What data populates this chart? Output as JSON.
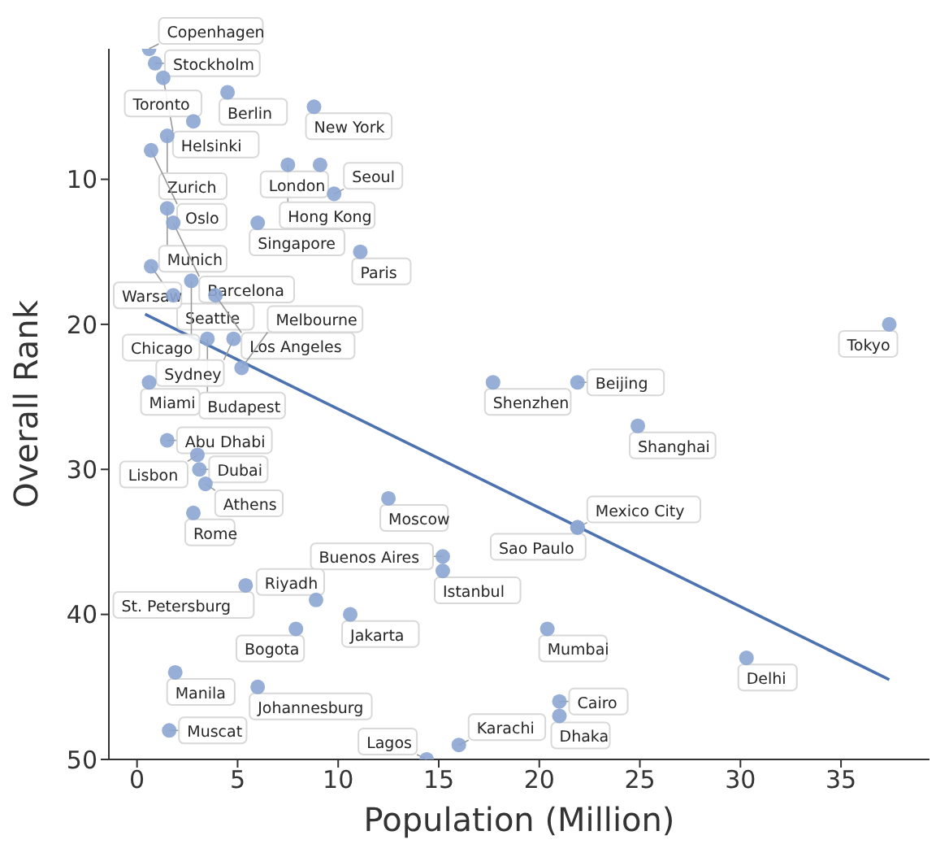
{
  "chart_data": {
    "type": "scatter",
    "xlabel": "Population (Million)",
    "ylabel": "Overall Rank",
    "xlim": [
      -1.4,
      39.4
    ],
    "ylim": [
      50,
      1
    ],
    "xticks": [
      0,
      5,
      10,
      15,
      20,
      25,
      30,
      35
    ],
    "yticks": [
      10,
      20,
      30,
      40,
      50
    ],
    "grid": false,
    "series": [
      {
        "marker": "circle",
        "color": "#8ca5d2",
        "x": [
          0.6,
          0.9,
          1.3,
          4.5,
          8.8,
          2.8,
          1.5,
          0.7,
          7.5,
          9.1,
          9.8,
          1.5,
          1.8,
          6.0,
          11.1,
          0.7,
          2.7,
          1.8,
          3.9,
          37.4,
          3.5,
          4.8,
          5.2,
          0.6,
          17.7,
          21.9,
          24.9,
          1.5,
          3.0,
          3.1,
          3.4,
          12.5,
          2.8,
          21.9,
          21.9,
          15.2,
          15.2,
          5.4,
          8.9,
          10.6,
          7.9,
          20.4,
          30.3,
          1.9,
          6.0,
          21.0,
          21.0,
          1.6,
          16.0,
          14.4
        ],
        "values": [
          1,
          2,
          3,
          4,
          5,
          6,
          7,
          8,
          9,
          9,
          11,
          12,
          13,
          13,
          15,
          16,
          17,
          18,
          18,
          20,
          21,
          21,
          23,
          24,
          24,
          24,
          27,
          28,
          29,
          30,
          31,
          32,
          33,
          34,
          34,
          36,
          37,
          38,
          39,
          40,
          41,
          41,
          43,
          44,
          45,
          46,
          47,
          48,
          49,
          50
        ]
      },
      {
        "type": "line",
        "marker": "none",
        "color": "#4c72b0",
        "x": [
          0.4,
          37.4
        ],
        "values": [
          19.3,
          44.5
        ]
      }
    ],
    "annotations": [
      {
        "text": "Copenhagen",
        "x": 0.6,
        "y": 1
      },
      {
        "text": "Stockholm",
        "x": 0.9,
        "y": 2
      },
      {
        "text": "Helsinki",
        "x": 1.3,
        "y": 3
      },
      {
        "text": "Berlin",
        "x": 4.5,
        "y": 4
      },
      {
        "text": "New York",
        "x": 8.8,
        "y": 5
      },
      {
        "text": "Toronto",
        "x": 2.8,
        "y": 6
      },
      {
        "text": "Zurich",
        "x": 1.5,
        "y": 7
      },
      {
        "text": "Oslo",
        "x": 0.7,
        "y": 8
      },
      {
        "text": "Hong Kong",
        "x": 7.5,
        "y": 9
      },
      {
        "text": "London",
        "x": 9.1,
        "y": 9
      },
      {
        "text": "Seoul",
        "x": 9.8,
        "y": 11
      },
      {
        "text": "Munich",
        "x": 1.5,
        "y": 12
      },
      {
        "text": "Barcelona",
        "x": 1.8,
        "y": 13
      },
      {
        "text": "Singapore",
        "x": 6.0,
        "y": 13
      },
      {
        "text": "Paris",
        "x": 11.1,
        "y": 15
      },
      {
        "text": "Seattle",
        "x": 0.7,
        "y": 16
      },
      {
        "text": "Chicago",
        "x": 2.7,
        "y": 17
      },
      {
        "text": "Warsaw",
        "x": 1.8,
        "y": 18
      },
      {
        "text": "Los Angeles",
        "x": 3.9,
        "y": 18
      },
      {
        "text": "Tokyo",
        "x": 37.4,
        "y": 20
      },
      {
        "text": "Budapest",
        "x": 3.5,
        "y": 21
      },
      {
        "text": "Sydney",
        "x": 4.8,
        "y": 21
      },
      {
        "text": "Melbourne",
        "x": 5.2,
        "y": 23
      },
      {
        "text": "Miami",
        "x": 0.6,
        "y": 24
      },
      {
        "text": "Shenzhen",
        "x": 17.7,
        "y": 24
      },
      {
        "text": "Beijing",
        "x": 21.9,
        "y": 24
      },
      {
        "text": "Shanghai",
        "x": 24.9,
        "y": 27
      },
      {
        "text": "Abu Dhabi",
        "x": 1.5,
        "y": 28
      },
      {
        "text": "Lisbon",
        "x": 3.0,
        "y": 29
      },
      {
        "text": "Dubai",
        "x": 3.1,
        "y": 30
      },
      {
        "text": "Athens",
        "x": 3.4,
        "y": 31
      },
      {
        "text": "Moscow",
        "x": 12.5,
        "y": 32
      },
      {
        "text": "Rome",
        "x": 2.8,
        "y": 33
      },
      {
        "text": "Sao Paulo",
        "x": 21.9,
        "y": 34
      },
      {
        "text": "Mexico City",
        "x": 21.9,
        "y": 34
      },
      {
        "text": "Buenos Aires",
        "x": 15.2,
        "y": 36
      },
      {
        "text": "Istanbul",
        "x": 15.2,
        "y": 37
      },
      {
        "text": "St. Petersburg",
        "x": 5.4,
        "y": 38
      },
      {
        "text": "Riyadh",
        "x": 8.9,
        "y": 39
      },
      {
        "text": "Jakarta",
        "x": 10.6,
        "y": 40
      },
      {
        "text": "Bogota",
        "x": 7.9,
        "y": 41
      },
      {
        "text": "Mumbai",
        "x": 20.4,
        "y": 41
      },
      {
        "text": "Delhi",
        "x": 30.3,
        "y": 43
      },
      {
        "text": "Manila",
        "x": 1.9,
        "y": 44
      },
      {
        "text": "Johannesburg",
        "x": 6.0,
        "y": 45
      },
      {
        "text": "Cairo",
        "x": 21.0,
        "y": 46
      },
      {
        "text": "Dhaka",
        "x": 21.0,
        "y": 47
      },
      {
        "text": "Muscat",
        "x": 1.6,
        "y": 48
      },
      {
        "text": "Karachi",
        "x": 16.0,
        "y": 49
      },
      {
        "text": "Lagos",
        "x": 14.4,
        "y": 50
      }
    ]
  }
}
